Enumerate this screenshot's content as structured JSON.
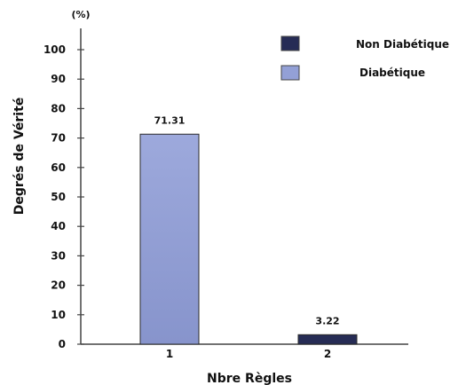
{
  "chart_data": {
    "type": "bar",
    "categories": [
      "1",
      "2"
    ],
    "values": [
      71.31,
      3.22
    ],
    "data_labels": [
      "71.31",
      "3.22"
    ],
    "bar_colors": [
      "#93a0d6",
      "#262c55"
    ],
    "bar_border_color": "#2b2b2b",
    "xlabel": "Nbre Règles",
    "ylabel": "Degrés de Vérité",
    "y_unit": "(%)",
    "ylim": [
      0,
      100
    ],
    "yticks": [
      0,
      10,
      20,
      30,
      40,
      50,
      60,
      70,
      80,
      90,
      100
    ],
    "grid": false,
    "legend": {
      "placement": "top-right",
      "items": [
        {
          "label": "Non Diabétique",
          "color": "#262c55"
        },
        {
          "label": "Diabétique",
          "color": "#93a0d6"
        }
      ]
    }
  }
}
